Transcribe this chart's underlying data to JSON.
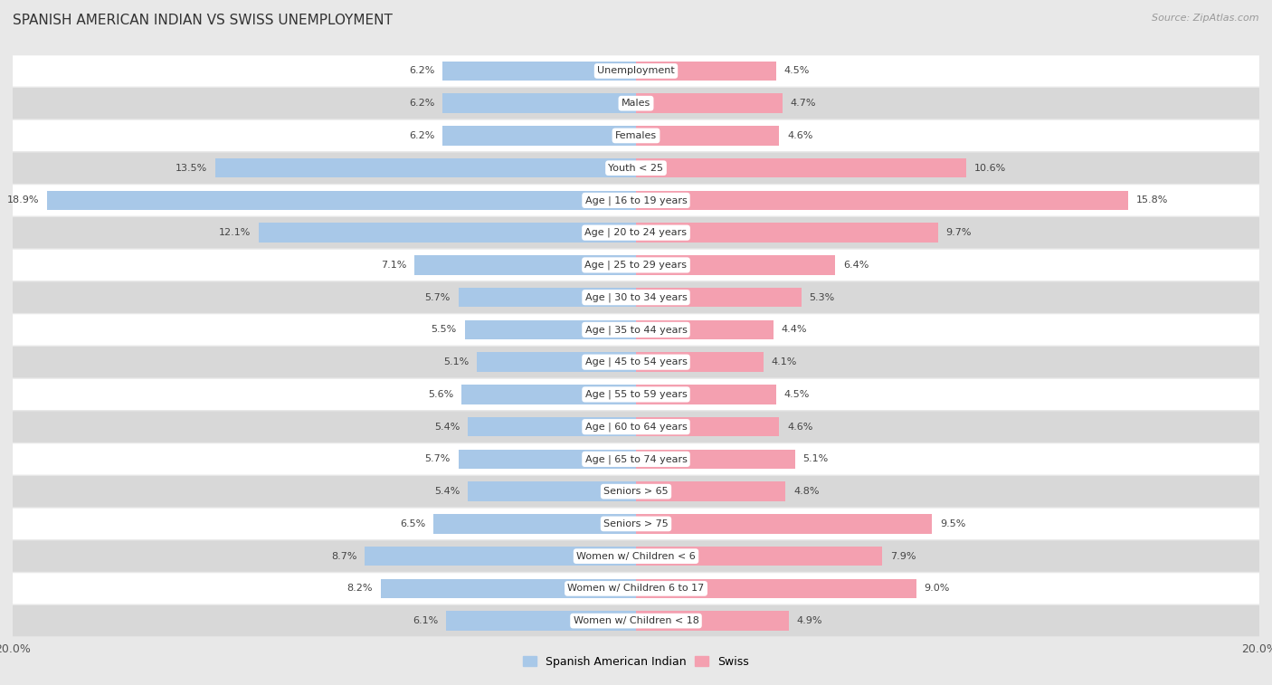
{
  "title": "SPANISH AMERICAN INDIAN VS SWISS UNEMPLOYMENT",
  "source": "Source: ZipAtlas.com",
  "categories": [
    "Unemployment",
    "Males",
    "Females",
    "Youth < 25",
    "Age | 16 to 19 years",
    "Age | 20 to 24 years",
    "Age | 25 to 29 years",
    "Age | 30 to 34 years",
    "Age | 35 to 44 years",
    "Age | 45 to 54 years",
    "Age | 55 to 59 years",
    "Age | 60 to 64 years",
    "Age | 65 to 74 years",
    "Seniors > 65",
    "Seniors > 75",
    "Women w/ Children < 6",
    "Women w/ Children 6 to 17",
    "Women w/ Children < 18"
  ],
  "left_values": [
    6.2,
    6.2,
    6.2,
    13.5,
    18.9,
    12.1,
    7.1,
    5.7,
    5.5,
    5.1,
    5.6,
    5.4,
    5.7,
    5.4,
    6.5,
    8.7,
    8.2,
    6.1
  ],
  "right_values": [
    4.5,
    4.7,
    4.6,
    10.6,
    15.8,
    9.7,
    6.4,
    5.3,
    4.4,
    4.1,
    4.5,
    4.6,
    5.1,
    4.8,
    9.5,
    7.9,
    9.0,
    4.9
  ],
  "left_color": "#a8c8e8",
  "right_color": "#f4a0b0",
  "left_color_dark": "#3a7abf",
  "right_color_dark": "#e05070",
  "left_label": "Spanish American Indian",
  "right_label": "Swiss",
  "axis_max": 20.0,
  "bg_color": "#e8e8e8",
  "row_white": "#ffffff",
  "row_gray": "#d8d8d8",
  "title_fontsize": 11,
  "value_fontsize": 8,
  "category_fontsize": 8,
  "legend_fontsize": 9,
  "source_fontsize": 8
}
